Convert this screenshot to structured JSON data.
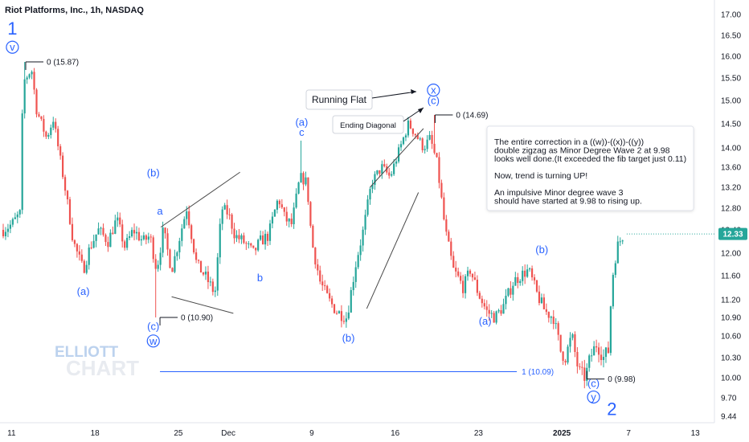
{
  "header": {
    "title": "Riot Platforms, Inc., 1h, NASDAQ"
  },
  "chart_data": {
    "type": "candlestick",
    "title": "Riot Platforms, Inc., 1h, NASDAQ",
    "ylim": [
      9.26,
      17.23
    ],
    "y_ticks": [
      "17.00",
      "16.50",
      "16.00",
      "15.50",
      "15.00",
      "14.50",
      "14.00",
      "13.60",
      "13.20",
      "12.80",
      "12.40",
      "12.00",
      "11.60",
      "11.20",
      "10.90",
      "10.60",
      "10.30",
      "10.00",
      "9.70",
      "9.44"
    ],
    "x_ticks": [
      {
        "label": "11",
        "t": 0.5
      },
      {
        "label": "18",
        "t": 5.5
      },
      {
        "label": "25",
        "t": 10.5
      },
      {
        "label": "Dec",
        "t": 13.5
      },
      {
        "label": "9",
        "t": 18.5
      },
      {
        "label": "16",
        "t": 23.5
      },
      {
        "label": "23",
        "t": 28.5
      },
      {
        "label": "2025",
        "t": 33.5,
        "bold": true
      },
      {
        "label": "7",
        "t": 37.5
      },
      {
        "label": "13",
        "t": 41.5
      }
    ],
    "colors": {
      "up": "#26a69a",
      "down": "#ef5350",
      "accent": "#2962ff"
    },
    "current_price": "12.33",
    "anchors": [
      [
        0.0,
        12.4
      ],
      [
        0.5,
        12.5
      ],
      [
        1.0,
        12.7
      ],
      [
        1.2,
        15.4
      ],
      [
        1.7,
        15.7
      ],
      [
        2.0,
        14.8
      ],
      [
        2.6,
        14.2
      ],
      [
        3.0,
        14.6
      ],
      [
        3.6,
        13.4
      ],
      [
        4.2,
        12.2
      ],
      [
        4.8,
        11.7
      ],
      [
        5.2,
        12.1
      ],
      [
        5.7,
        12.4
      ],
      [
        6.3,
        12.2
      ],
      [
        6.8,
        12.6
      ],
      [
        7.3,
        12.1
      ],
      [
        7.8,
        12.4
      ],
      [
        8.4,
        12.2
      ],
      [
        8.8,
        12.3
      ],
      [
        9.2,
        11.7
      ],
      [
        9.6,
        12.4
      ],
      [
        10.1,
        11.7
      ],
      [
        10.6,
        12.3
      ],
      [
        11.0,
        12.8
      ],
      [
        11.6,
        11.8
      ],
      [
        12.1,
        11.6
      ],
      [
        12.7,
        11.3
      ],
      [
        13.1,
        12.8
      ],
      [
        13.5,
        12.7
      ],
      [
        13.9,
        12.3
      ],
      [
        14.4,
        12.2
      ],
      [
        15.0,
        12.0
      ],
      [
        15.4,
        12.2
      ],
      [
        15.9,
        12.3
      ],
      [
        16.5,
        13.0
      ],
      [
        16.9,
        12.6
      ],
      [
        17.3,
        12.5
      ],
      [
        17.8,
        13.4
      ],
      [
        18.2,
        13.3
      ],
      [
        18.5,
        12.2
      ],
      [
        19.0,
        11.5
      ],
      [
        19.5,
        11.2
      ],
      [
        20.0,
        11.0
      ],
      [
        20.6,
        10.9
      ],
      [
        21.2,
        11.9
      ],
      [
        21.6,
        12.4
      ],
      [
        22.1,
        13.3
      ],
      [
        22.7,
        13.6
      ],
      [
        23.2,
        13.4
      ],
      [
        23.8,
        14.0
      ],
      [
        24.3,
        14.5
      ],
      [
        24.7,
        14.3
      ],
      [
        25.2,
        14.0
      ],
      [
        25.6,
        14.2
      ],
      [
        26.0,
        13.7
      ],
      [
        26.5,
        12.4
      ],
      [
        27.0,
        11.7
      ],
      [
        27.6,
        11.4
      ],
      [
        28.0,
        11.7
      ],
      [
        28.5,
        11.3
      ],
      [
        29.0,
        11.0
      ],
      [
        29.5,
        10.9
      ],
      [
        30.0,
        11.1
      ],
      [
        30.6,
        11.5
      ],
      [
        31.0,
        11.6
      ],
      [
        31.5,
        11.7
      ],
      [
        32.0,
        11.3
      ],
      [
        32.5,
        11.0
      ],
      [
        33.0,
        10.9
      ],
      [
        33.4,
        10.4
      ],
      [
        33.7,
        10.3
      ],
      [
        34.1,
        10.6
      ],
      [
        34.5,
        10.1
      ],
      [
        34.9,
        10.0
      ],
      [
        35.2,
        10.3
      ],
      [
        35.6,
        10.5
      ],
      [
        36.0,
        10.3
      ],
      [
        36.3,
        10.4
      ],
      [
        36.5,
        11.5
      ],
      [
        36.8,
        12.1
      ],
      [
        37.2,
        12.33
      ]
    ]
  },
  "annotations": {
    "wave_labels": [
      {
        "text": "1",
        "t": 0.55,
        "p": 16.6,
        "big": true
      },
      {
        "text": "v",
        "t": 0.55,
        "p": 16.13,
        "circled": true
      },
      {
        "text": "(a)",
        "t": 4.8,
        "p": 11.28
      },
      {
        "text": "(b)",
        "t": 9.0,
        "p": 13.42
      },
      {
        "text": "a",
        "t": 9.4,
        "p": 12.68
      },
      {
        "text": "(c)",
        "t": 9.0,
        "p": 10.7
      },
      {
        "text": "w",
        "t": 9.0,
        "p": 10.48,
        "circled": true
      },
      {
        "text": "b",
        "t": 15.4,
        "p": 11.51
      },
      {
        "text": "(a)",
        "t": 17.9,
        "p": 14.46
      },
      {
        "text": "c",
        "t": 17.9,
        "p": 14.25
      },
      {
        "text": "(b)",
        "t": 20.7,
        "p": 10.52
      },
      {
        "text": "x",
        "t": 25.8,
        "p": 15.15,
        "circled": true
      },
      {
        "text": "(c)",
        "t": 25.8,
        "p": 14.92
      },
      {
        "text": "(a)",
        "t": 28.9,
        "p": 10.78
      },
      {
        "text": "(b)",
        "t": 32.3,
        "p": 12.0
      },
      {
        "text": "(c)",
        "t": 35.4,
        "p": 9.86
      },
      {
        "text": "y",
        "t": 35.4,
        "p": 9.66,
        "circled": true
      },
      {
        "text": "2",
        "t": 36.5,
        "p": 9.5,
        "big": true
      }
    ],
    "fib_markers": [
      {
        "text": "0 (15.87)",
        "t_start": 1.35,
        "t_end": 2.35,
        "p": 15.87
      },
      {
        "text": "0 (10.90)",
        "t_start": 9.4,
        "t_end": 10.4,
        "p": 10.9
      },
      {
        "text": "0 (14.69)",
        "t_start": 25.9,
        "t_end": 26.9,
        "p": 14.69
      },
      {
        "text": "0 (9.98)",
        "t_start": 35.0,
        "t_end": 36.0,
        "p": 9.98
      }
    ],
    "fib_line": {
      "text": "1 (10.09)",
      "t_start": 9.4,
      "t_end": 30.8,
      "p": 10.09
    },
    "callouts": {
      "running_flat": "Running Flat",
      "ending_diagonal": "Ending Diagonal"
    },
    "note_lines": [
      "The entire correction in a ((w))-((x))-((y))",
      "double zigzag as Minor Degree Wave 2 at 9.98",
      "looks well done.(It exceeded the fib target just 0.11)",
      "",
      "Now, trend is turning UP!",
      "",
      "An impulsive Minor degree wave 3",
      "should have started at 9.98 to rising up."
    ]
  },
  "watermark": {
    "line1": "ELLIOTT",
    "line2": "CHART"
  }
}
